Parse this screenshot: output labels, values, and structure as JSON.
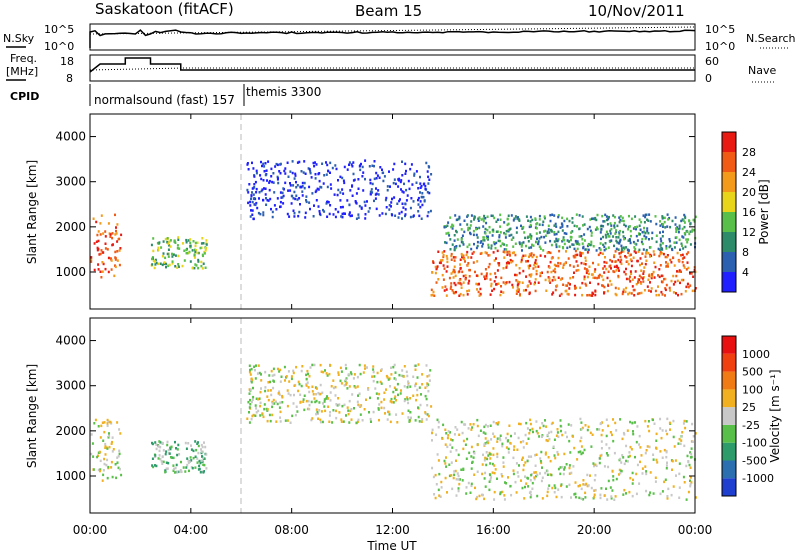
{
  "header": {
    "station": "Saskatoon (fitACF)",
    "beam": "Beam 15",
    "date": "10/Nov/2011"
  },
  "noise_panel": {
    "left_label": "N.Sky",
    "left_ticks": [
      "10^5",
      "10^0"
    ],
    "right_label": "N.Search",
    "right_ticks": [
      "10^5",
      "10^0"
    ]
  },
  "freq_panel": {
    "left_label_1": "Freq.",
    "left_label_2": "[MHz]",
    "left_ticks": [
      "18",
      "8"
    ],
    "right_label": "Nave",
    "right_ticks": [
      "60",
      "0"
    ]
  },
  "cpid": {
    "label": "CPID",
    "mode_1": "normalsound (fast) 157",
    "mode_2": "themis 3300"
  },
  "chart_data": [
    {
      "type": "heatmap",
      "name": "power",
      "ylabel": "Slant Range [km]",
      "xlabel": "",
      "y_ticks": [
        "1000",
        "2000",
        "3000",
        "4000"
      ],
      "ylim": [
        180,
        4500
      ],
      "xlim_hours": [
        0,
        24
      ],
      "colorbar": {
        "label": "Power [dB]",
        "ticks": [
          "4",
          "8",
          "12",
          "16",
          "20",
          "24",
          "28"
        ],
        "colors": [
          "#1f1fff",
          "#2b5fb0",
          "#2e8b6a",
          "#58c048",
          "#e8d418",
          "#f39a1a",
          "#f05a14",
          "#e81a12"
        ]
      },
      "regions": [
        {
          "t0": 0.0,
          "t1": 1.2,
          "r0": 900,
          "r1": 2300,
          "level": 6
        },
        {
          "t0": 2.4,
          "t1": 4.6,
          "r0": 1100,
          "r1": 1800,
          "level": 3
        },
        {
          "t0": 13.5,
          "t1": 24.0,
          "r0": 500,
          "r1": 1500,
          "level": 6
        },
        {
          "t0": 14.0,
          "t1": 24.0,
          "r0": 1500,
          "r1": 2300,
          "level": 2
        },
        {
          "t0": 6.2,
          "t1": 13.5,
          "r0": 2200,
          "r1": 3500,
          "level": 0
        }
      ]
    },
    {
      "type": "heatmap",
      "name": "velocity",
      "ylabel": "Slant Range [km]",
      "xlabel": "Time UT",
      "y_ticks": [
        "1000",
        "2000",
        "3000",
        "4000"
      ],
      "ylim": [
        180,
        4500
      ],
      "x_ticks": [
        "00:00",
        "04:00",
        "08:00",
        "12:00",
        "16:00",
        "20:00",
        "00:00"
      ],
      "colorbar": {
        "label": "Velocity [m s⁻¹]",
        "ticks": [
          "1000",
          "500",
          "100",
          "25",
          "-25",
          "-100",
          "-500",
          "-1000"
        ],
        "colors": [
          "#1f3fd0",
          "#2b6fb0",
          "#2e9b6a",
          "#58c048",
          "#c8c8c8",
          "#f0b020",
          "#f07a14",
          "#f04010",
          "#e81010"
        ]
      },
      "regions": [
        {
          "t0": 0.0,
          "t1": 1.2,
          "r0": 900,
          "r1": 2300,
          "level": 4
        },
        {
          "t0": 2.4,
          "t1": 4.6,
          "r0": 1100,
          "r1": 1800,
          "level": 3
        },
        {
          "t0": 13.5,
          "t1": 24.0,
          "r0": 500,
          "r1": 2300,
          "level": 4
        },
        {
          "t0": 6.2,
          "t1": 13.5,
          "r0": 2200,
          "r1": 3500,
          "level": 4
        }
      ]
    }
  ]
}
